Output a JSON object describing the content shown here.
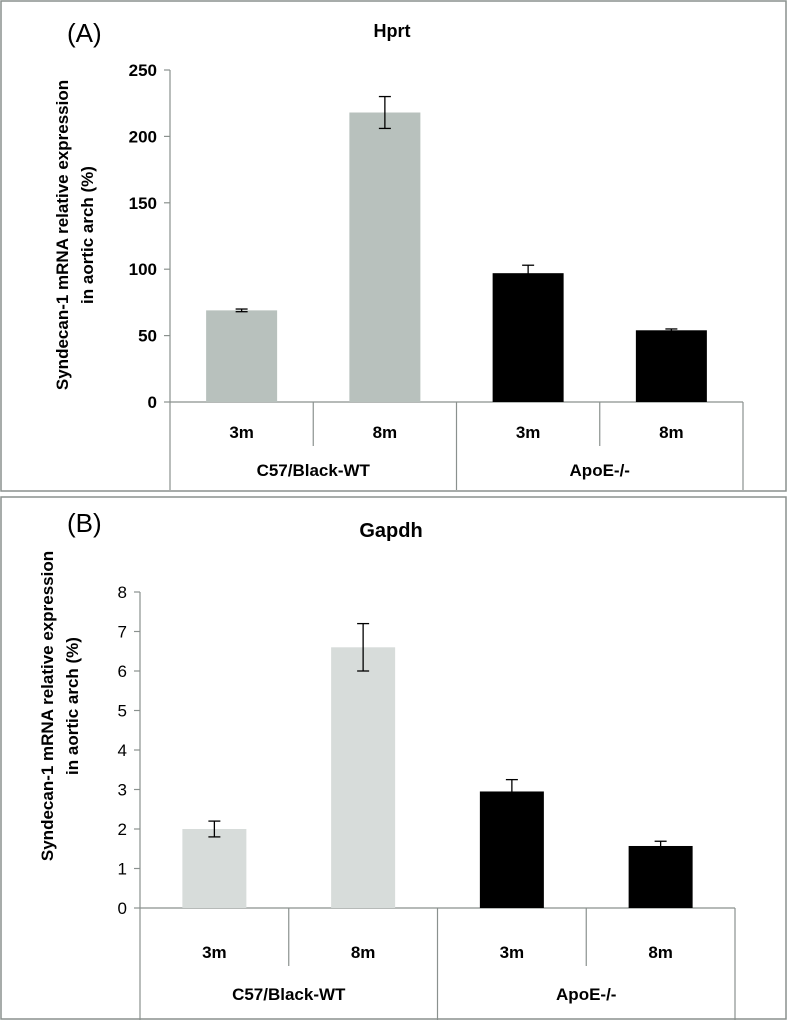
{
  "chart_data": [
    {
      "type": "bar",
      "panel_label": "(A)",
      "title": "Hprt",
      "ylabel_line1": "Syndecan-1 mRNA relative expression",
      "ylabel_line2": "in aortic arch (%)",
      "ylim": [
        0,
        250
      ],
      "yticks": [
        0,
        50,
        100,
        150,
        200,
        250
      ],
      "categories": [
        "3m",
        "8m",
        "3m",
        "8m"
      ],
      "groups": [
        {
          "label": "C57/Black-WT",
          "span": [
            0,
            1
          ]
        },
        {
          "label": "ApoE-/-",
          "span": [
            2,
            3
          ]
        }
      ],
      "values": [
        69,
        218,
        97,
        54
      ],
      "errors": [
        1,
        12,
        6,
        1
      ],
      "bar_colors": [
        "#b8c1bd",
        "#b8c1bd",
        "#000000",
        "#000000"
      ],
      "grid": false,
      "legend": "none"
    },
    {
      "type": "bar",
      "panel_label": "(B)",
      "title": "Gapdh",
      "ylabel_line1": "Syndecan-1 mRNA relative expression",
      "ylabel_line2": "in aortic arch (%)",
      "ylim": [
        0,
        8
      ],
      "yticks": [
        0,
        1,
        2,
        3,
        4,
        5,
        6,
        7,
        8
      ],
      "categories": [
        "3m",
        "8m",
        "3m",
        "8m"
      ],
      "groups": [
        {
          "label": "C57/Black-WT",
          "span": [
            0,
            1
          ]
        },
        {
          "label": "ApoE-/-",
          "span": [
            2,
            3
          ]
        }
      ],
      "values": [
        2.0,
        6.6,
        2.95,
        1.57
      ],
      "errors": [
        0.2,
        0.6,
        0.3,
        0.12
      ],
      "bar_colors": [
        "#d7dcda",
        "#d7dcda",
        "#000000",
        "#000000"
      ],
      "grid": false,
      "legend": "none"
    }
  ]
}
